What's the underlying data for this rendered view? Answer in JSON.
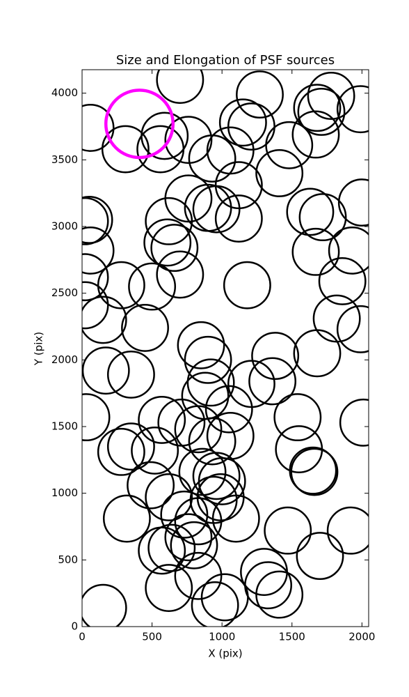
{
  "chart_data": {
    "type": "scatter",
    "title": "Size and Elongation of PSF sources",
    "x_label": "X (pix)",
    "y_label": "Y (pix)",
    "x": [
      700,
      60,
      310,
      560,
      590,
      760,
      1270,
      1150,
      1210,
      1680,
      1780,
      1710,
      1990,
      1670,
      1480,
      1060,
      930,
      1410,
      1120,
      760,
      900,
      960,
      1120,
      620,
      50,
      20,
      1630,
      1720,
      2000,
      60,
      1930,
      610,
      660,
      1670,
      20,
      700,
      280,
      500,
      1180,
      1860,
      20,
      150,
      450,
      1820,
      1990,
      850,
      900,
      1380,
      1680,
      170,
      350,
      920,
      1210,
      1360,
      880,
      1050,
      30,
      570,
      710,
      830,
      1540,
      2010,
      930,
      1060,
      280,
      350,
      520,
      1550,
      1650,
      1660,
      860,
      960,
      1000,
      490,
      620,
      990,
      730,
      830,
      940,
      1100,
      320,
      1470,
      1920,
      760,
      800,
      1700,
      570,
      640,
      830,
      1300,
      1330,
      620,
      1020,
      950,
      1410,
      150
    ],
    "y": [
      4100,
      3740,
      3580,
      3580,
      3680,
      3650,
      3990,
      3780,
      3750,
      3890,
      3980,
      3860,
      3880,
      3690,
      3610,
      3570,
      3510,
      3400,
      3310,
      3210,
      3140,
      3130,
      3060,
      3040,
      3050,
      3040,
      3110,
      3070,
      3180,
      2820,
      2820,
      2880,
      2840,
      2810,
      2620,
      2640,
      2560,
      2550,
      2560,
      2590,
      2410,
      2300,
      2240,
      2310,
      2230,
      2110,
      2000,
      2030,
      2050,
      1920,
      1890,
      1830,
      1820,
      1840,
      1730,
      1630,
      1570,
      1550,
      1530,
      1480,
      1570,
      1530,
      1390,
      1430,
      1310,
      1350,
      1320,
      1330,
      1170,
      1160,
      1160,
      1130,
      1090,
      1060,
      970,
      970,
      840,
      790,
      950,
      810,
      810,
      720,
      720,
      670,
      610,
      530,
      570,
      590,
      380,
      410,
      310,
      290,
      220,
      160,
      240,
      140
    ],
    "color": "#000000",
    "radius": 165,
    "highlight": {
      "x": 410,
      "y": 3770,
      "radius": 240,
      "color": "#ff00ff"
    },
    "xlim": [
      0,
      2048
    ],
    "ylim": [
      0,
      4176
    ],
    "xticks": [
      0,
      500,
      1000,
      1500,
      2000
    ],
    "yticks": [
      0,
      500,
      1000,
      1500,
      2000,
      2500,
      3000,
      3500,
      4000
    ],
    "grid": false
  }
}
